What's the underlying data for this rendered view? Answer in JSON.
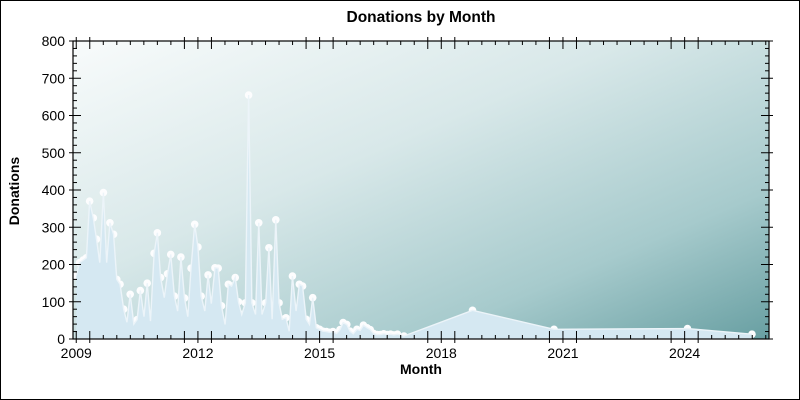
{
  "title": "Donations by Month",
  "colors": {
    "frame": "#000000",
    "text": "#000000",
    "area_fill": "#d5e8f2",
    "area_edge": "#ecf4f9",
    "marker_fill": "#fdfdfe",
    "plot_gradient": [
      "#f8fbfb",
      "#d8e8e9",
      "#a6cacc",
      "#689fa2"
    ]
  },
  "chart_data": {
    "type": "area",
    "title": "Donations by Month",
    "xlabel": "Month",
    "ylabel": "Donations",
    "x_unit": "decimal_year",
    "x_range": [
      2008.92,
      2026.08
    ],
    "ylim": [
      0,
      800
    ],
    "y_major_step": 100,
    "y_minor_step": 20,
    "x_major_ticks": [
      2009,
      2012,
      2015,
      2018,
      2021,
      2024
    ],
    "x_tick_labels": [
      "2009",
      "2012",
      "2015",
      "2018",
      "2021",
      "2024"
    ],
    "x_minor_step": 0.33333,
    "y_tick_labels": [
      "0",
      "100",
      "200",
      "300",
      "400",
      "500",
      "600",
      "700",
      "800"
    ],
    "grid": false,
    "legend": false,
    "markers": "white circles on every data point",
    "x": [
      2009.0,
      2009.08,
      2009.17,
      2009.25,
      2009.33,
      2009.42,
      2009.5,
      2009.58,
      2009.67,
      2009.75,
      2009.83,
      2009.92,
      2010.0,
      2010.08,
      2010.17,
      2010.25,
      2010.33,
      2010.42,
      2010.5,
      2010.58,
      2010.67,
      2010.75,
      2010.83,
      2010.92,
      2011.0,
      2011.08,
      2011.17,
      2011.25,
      2011.33,
      2011.42,
      2011.5,
      2011.58,
      2011.67,
      2011.75,
      2011.83,
      2011.92,
      2012.0,
      2012.08,
      2012.17,
      2012.25,
      2012.33,
      2012.42,
      2012.5,
      2012.58,
      2012.67,
      2012.75,
      2012.83,
      2012.92,
      2013.0,
      2013.08,
      2013.17,
      2013.25,
      2013.33,
      2013.42,
      2013.5,
      2013.58,
      2013.67,
      2013.75,
      2013.83,
      2013.92,
      2014.0,
      2014.08,
      2014.17,
      2014.25,
      2014.33,
      2014.42,
      2014.5,
      2014.58,
      2014.67,
      2014.75,
      2014.83,
      2014.92,
      2015.0,
      2015.08,
      2015.17,
      2015.25,
      2015.33,
      2015.42,
      2015.5,
      2015.58,
      2015.67,
      2015.75,
      2015.83,
      2015.92,
      2016.0,
      2016.08,
      2016.17,
      2016.25,
      2016.33,
      2016.42,
      2016.5,
      2016.58,
      2016.67,
      2016.75,
      2016.83,
      2016.92,
      2017.08,
      2018.77,
      2020.78,
      2024.07,
      2025.66
    ],
    "values": [
      170,
      205,
      212,
      218,
      370,
      325,
      268,
      205,
      393,
      205,
      312,
      281,
      160,
      147,
      80,
      45,
      120,
      40,
      52,
      130,
      60,
      150,
      48,
      230,
      285,
      165,
      111,
      175,
      227,
      115,
      75,
      220,
      110,
      60,
      190,
      308,
      247,
      115,
      75,
      172,
      95,
      191,
      190,
      89,
      39,
      147,
      142,
      165,
      100,
      66,
      97,
      655,
      97,
      66,
      312,
      66,
      97,
      245,
      53,
      320,
      97,
      53,
      57,
      21,
      169,
      75,
      147,
      142,
      53,
      39,
      111,
      30,
      26,
      21,
      20,
      18,
      20,
      15,
      25,
      44,
      39,
      21,
      14,
      26,
      23,
      37,
      30,
      25,
      15,
      12,
      12,
      14,
      12,
      13,
      11,
      13,
      8,
      77,
      26,
      28,
      13
    ]
  }
}
